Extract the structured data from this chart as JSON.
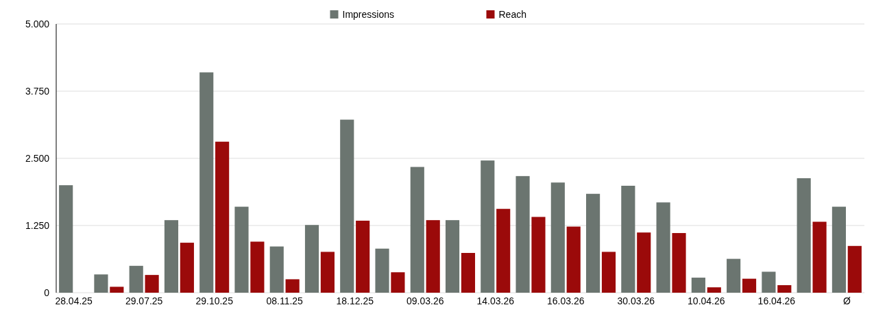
{
  "chart_data": {
    "type": "bar",
    "categories": [
      "28.04.25",
      null,
      "29.07.25",
      null,
      "29.10.25",
      null,
      "08.11.25",
      null,
      "18.12.25",
      null,
      "09.03.26",
      null,
      "14.03.26",
      null,
      "16.03.26",
      null,
      "30.03.26",
      null,
      "10.04.26",
      null,
      "16.04.26",
      null,
      "Ø"
    ],
    "series": [
      {
        "name": "Impressions",
        "color": "#6b7570",
        "values": [
          2000,
          340,
          500,
          1350,
          4100,
          1600,
          860,
          1260,
          3220,
          820,
          2340,
          1350,
          2460,
          2170,
          2050,
          1840,
          1990,
          1680,
          280,
          630,
          390,
          2130,
          1600
        ]
      },
      {
        "name": "Reach",
        "color": "#9b0a0a",
        "values": [
          0,
          110,
          330,
          930,
          2810,
          950,
          250,
          760,
          1340,
          380,
          1350,
          740,
          1560,
          1410,
          1230,
          760,
          1120,
          1110,
          100,
          260,
          140,
          1320,
          870
        ]
      }
    ],
    "ylim": [
      0,
      5000
    ],
    "yticks": [
      0,
      {
        "value": 1250,
        "label": "1.250"
      },
      {
        "value": 2500,
        "label": "2.500"
      },
      {
        "value": 3750,
        "label": "3.750"
      },
      {
        "value": 5000,
        "label": "5.000"
      }
    ],
    "grid": "y",
    "legend": "top"
  }
}
